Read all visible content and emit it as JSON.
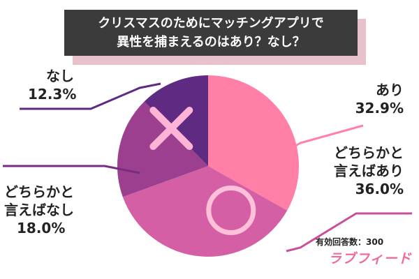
{
  "title": {
    "line1": "クリスマスのためにマッチングアプリで",
    "line2": "異性を捕まえるのはあり？なし？"
  },
  "sample_size_text": "有効回答数：300",
  "brand": "ラブフィード",
  "chart_data": {
    "type": "pie",
    "slices": [
      {
        "label_line1": "あり",
        "label_line2": "",
        "value": 32.9,
        "value_text": "32.9%",
        "color": "#ff7fa7"
      },
      {
        "label_line1": "どちらかと",
        "label_line2": "言えばあり",
        "value": 36.0,
        "value_text": "36.0%",
        "color": "#d45fa5"
      },
      {
        "label_line1": "どちらかと",
        "label_line2": "言えばなし",
        "value": 18.0,
        "value_text": "18.0%",
        "color": "#9b3f8e"
      },
      {
        "label_line1": "なし",
        "label_line2": "",
        "value": 12.3,
        "value_text": "12.3%",
        "color": "#5e2a82"
      }
    ],
    "start": "top, clockwise",
    "markers": [
      {
        "slice": "あり",
        "icon": "circle-icon"
      },
      {
        "slice": "なし",
        "icon": "cross-icon"
      }
    ]
  }
}
